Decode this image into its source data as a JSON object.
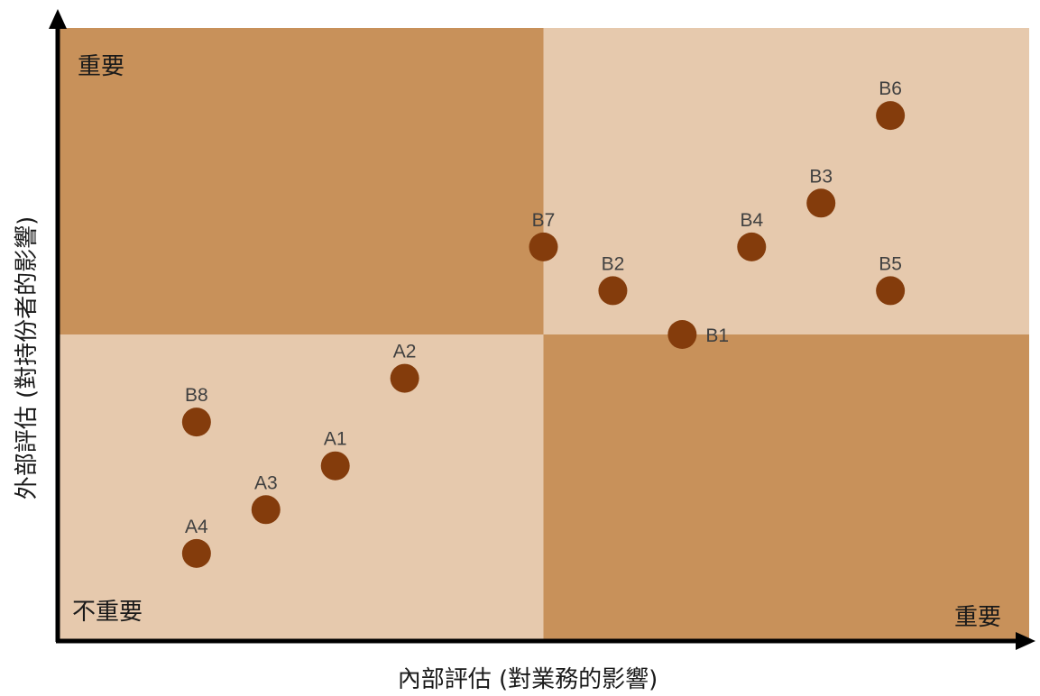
{
  "chart_data": {
    "type": "scatter",
    "xlabel": "內部評估 (對業務的影響)",
    "ylabel": "外部評估 (對持份者的影響)",
    "xlim": [
      0,
      14
    ],
    "ylim": [
      0,
      14
    ],
    "grid": false,
    "legend": "none",
    "quadrant_split": {
      "x": 7,
      "y": 7
    },
    "quadrant_labels": {
      "top_left": "重要",
      "bottom_left": "不重要",
      "bottom_right": "重要"
    },
    "colors": {
      "quadrant_dark": "#c8915a",
      "quadrant_light": "#e6c9ad",
      "point": "#843c0c",
      "axis": "#000000"
    },
    "points": [
      {
        "label": "A1",
        "x": 4,
        "y": 4
      },
      {
        "label": "A2",
        "x": 5,
        "y": 6
      },
      {
        "label": "A3",
        "x": 3,
        "y": 3
      },
      {
        "label": "A4",
        "x": 2,
        "y": 2
      },
      {
        "label": "B1",
        "x": 9,
        "y": 7
      },
      {
        "label": "B2",
        "x": 8,
        "y": 8
      },
      {
        "label": "B3",
        "x": 11,
        "y": 10
      },
      {
        "label": "B4",
        "x": 10,
        "y": 9
      },
      {
        "label": "B5",
        "x": 12,
        "y": 8
      },
      {
        "label": "B6",
        "x": 12,
        "y": 12
      },
      {
        "label": "B7",
        "x": 7,
        "y": 9
      },
      {
        "label": "B8",
        "x": 2,
        "y": 5
      }
    ]
  }
}
